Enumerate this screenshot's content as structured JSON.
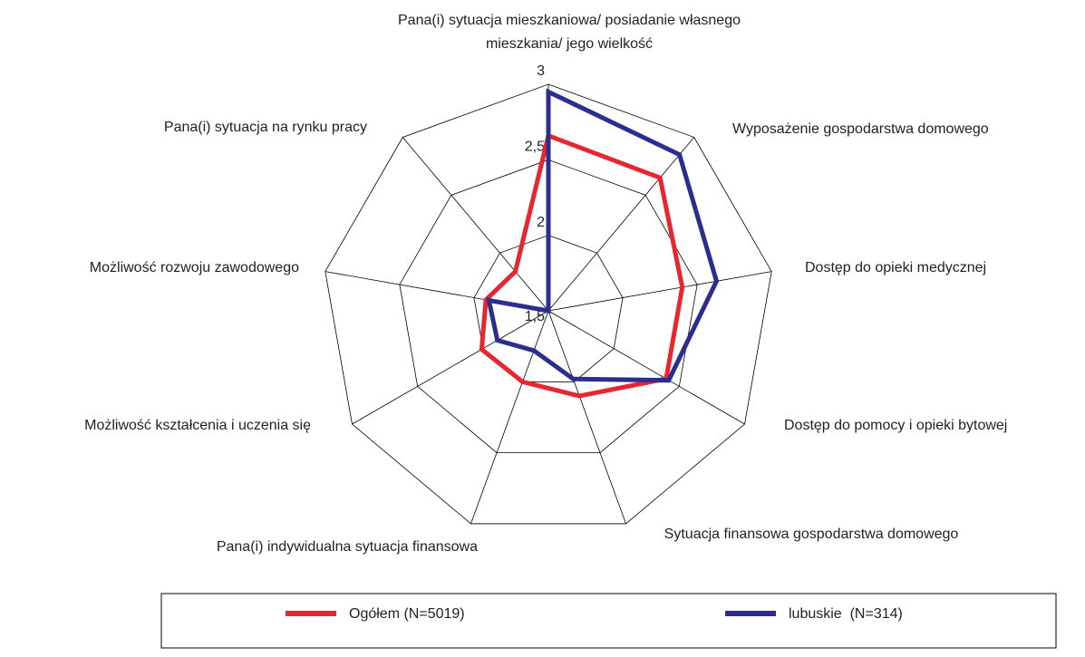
{
  "chart_data": {
    "type": "radar",
    "categories": [
      "Pana(i) sytuacja mieszkaniowa/ posiadanie własnego mieszkania/ jego wielkość",
      "Wyposażenie gospodarstwa domowego",
      "Dostęp do opieki medycznej",
      "Dostęp do pomocy i opieki bytowej",
      "Sytuacja finansowa gospodarstwa domowego",
      "Pana(i) indywidualna sytuacja finansowa",
      "Możliwość kształcenia i uczenia się",
      "Możliwość rozwoju zawodowego",
      "Pana(i) sytuacja na rynku pracy"
    ],
    "series": [
      {
        "name": "Ogółem (N=5019)",
        "color": "#e8262f",
        "values": [
          2.66,
          2.65,
          2.4,
          2.4,
          2.1,
          2.0,
          2.01,
          1.92,
          1.84
        ]
      },
      {
        "name": "lubuskie  (N=314)",
        "color": "#2b2d8f",
        "values": [
          2.95,
          2.85,
          2.63,
          2.42,
          1.98,
          1.78,
          1.89,
          1.9,
          1.5
        ]
      }
    ],
    "ylim": [
      1.5,
      3
    ],
    "yticks": [
      {
        "value": 1.5,
        "label": "1,5"
      },
      2,
      {
        "value": 2.5,
        "label": "2,5"
      },
      3
    ],
    "grid": true,
    "legend": "bottom"
  }
}
